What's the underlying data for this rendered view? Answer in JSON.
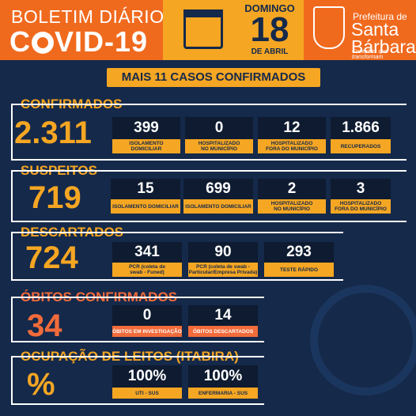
{
  "header": {
    "title_line1": "BOLETIM DIÁRIO",
    "title_line2_a": "C",
    "title_line2_b": "VID-19",
    "weekday": "DOMINGO",
    "day": "18",
    "month": "DE ABRIL",
    "pref_small": "Prefeitura de",
    "pref_name_1": "Santa",
    "pref_name_2": "Bárbara",
    "slogan": "Conexões que transformam"
  },
  "banner": "MAIS 11 CASOS CONFIRMADOS",
  "confirmados": {
    "title": "CONFIRMADOS",
    "total": "2.311",
    "cards": [
      {
        "value": "399",
        "label1": "ISOLAMENTO",
        "label2": "DOMICILIAR"
      },
      {
        "value": "0",
        "label1": "HOSPITALIZADO",
        "label2": "NO MUNICÍPIO"
      },
      {
        "value": "12",
        "label1": "HOSPITALIZADO",
        "label2": "FORA DO MUNICÍPIO"
      },
      {
        "value": "1.866",
        "label1": "RECUPERADOS",
        "label2": ""
      }
    ]
  },
  "suspeitos": {
    "title": "SUSPEITOS",
    "total": "719",
    "cards": [
      {
        "value": "15",
        "label1": "ISOLAMENTO DOMICILIAR",
        "label2": ""
      },
      {
        "value": "699",
        "label1": "ISOLAMENTO DOMICILIAR",
        "label2": ""
      },
      {
        "value": "2",
        "label1": "HOSPITALIZADO",
        "label2": "NO MUNICÍPIO"
      },
      {
        "value": "3",
        "label1": "HOSPITALIZADO",
        "label2": "FORA DO MUNICÍPIO"
      }
    ]
  },
  "descartados": {
    "title": "DESCARTADOS",
    "total": "724",
    "cards": [
      {
        "value": "341",
        "label1": "PCR (coleta de",
        "label2": "swab - Funed)"
      },
      {
        "value": "90",
        "label1": "PCR (coleta de swab -",
        "label2": "Particular/Empresa Privada)"
      },
      {
        "value": "293",
        "label1": "TESTE RÁPIDO",
        "label2": ""
      }
    ]
  },
  "obitos": {
    "title": "ÓBITOS CONFIRMADOS",
    "total": "34",
    "cards": [
      {
        "value": "0",
        "label1": "ÓBITOS EM INVESTIGAÇÃO"
      },
      {
        "value": "14",
        "label1": "ÓBITOS DESCARTADOS"
      }
    ]
  },
  "leitos": {
    "title": "OCUPAÇÃO DE LEITOS (ITABIRA)",
    "total": "%",
    "cards": [
      {
        "value": "100%",
        "label1": "UTI - SUS"
      },
      {
        "value": "100%",
        "label1": "ENFERMARIA - SUS"
      }
    ]
  },
  "colors": {
    "orange": "#f06a1e",
    "yellow": "#f5a623",
    "navy": "#15294a",
    "red": "#f26b3a"
  }
}
